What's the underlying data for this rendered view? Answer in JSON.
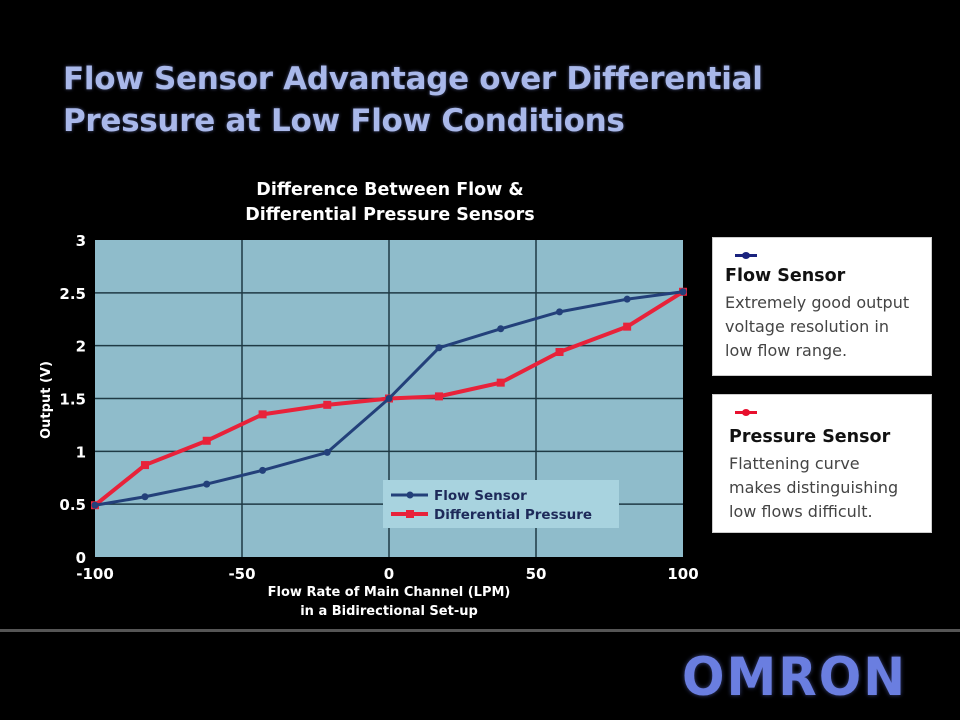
{
  "slide": {
    "title_line1": "Flow Sensor Advantage over Differential",
    "title_line2": "Pressure at Low Flow Conditions"
  },
  "chart": {
    "title_line1": "Difference Between Flow &",
    "title_line2": "Differential Pressure Sensors",
    "ylabel": "Output (V)",
    "xlabel_line1": "Flow Rate of Main Channel (LPM)",
    "xlabel_line2": "in a Bidirectional Set-up",
    "legend": [
      "Flow Sensor",
      "Differential Pressure"
    ]
  },
  "info_boxes": [
    {
      "title": "Flow Sensor",
      "body_lines": [
        "Extremely good output",
        "voltage resolution in",
        "low flow range."
      ],
      "color": "#1a237e"
    },
    {
      "title": "Pressure Sensor",
      "body_lines": [
        "Flattening curve",
        "makes distinguishing",
        "low flows difficult."
      ],
      "color": "#e8102e"
    }
  ],
  "logo": {
    "text": "OMRON"
  },
  "colors": {
    "plot_bg": "#8fbccb",
    "grid": "#1f3a45",
    "flow": "#23407a",
    "pressure": "#e8223a",
    "title": "#a9b8ea"
  },
  "chart_data": {
    "type": "line",
    "title": "Difference Between Flow & Differential Pressure Sensors",
    "xlabel": "Flow Rate of Main Channel (LPM) in a Bidirectional Set-up",
    "ylabel": "Output (V)",
    "xlim": [
      -100,
      100
    ],
    "ylim": [
      0,
      3
    ],
    "xticks": [
      -100,
      -50,
      0,
      50,
      100
    ],
    "yticks": [
      0,
      0.5,
      1,
      1.5,
      2,
      2.5,
      3
    ],
    "grid": true,
    "legend_position": "lower right (inside plot)",
    "series": [
      {
        "name": "Flow Sensor",
        "color": "#23407a",
        "x": [
          -100,
          -83,
          -62,
          -43,
          -21,
          0,
          17,
          38,
          58,
          81,
          100
        ],
        "y": [
          0.49,
          0.57,
          0.69,
          0.82,
          0.99,
          1.5,
          1.98,
          2.16,
          2.32,
          2.44,
          2.51
        ]
      },
      {
        "name": "Differential Pressure",
        "color": "#e8223a",
        "x": [
          -100,
          -83,
          -62,
          -43,
          -21,
          0,
          17,
          38,
          58,
          81,
          100
        ],
        "y": [
          0.49,
          0.87,
          1.1,
          1.35,
          1.44,
          1.5,
          1.52,
          1.65,
          1.94,
          2.18,
          2.51
        ]
      }
    ]
  }
}
